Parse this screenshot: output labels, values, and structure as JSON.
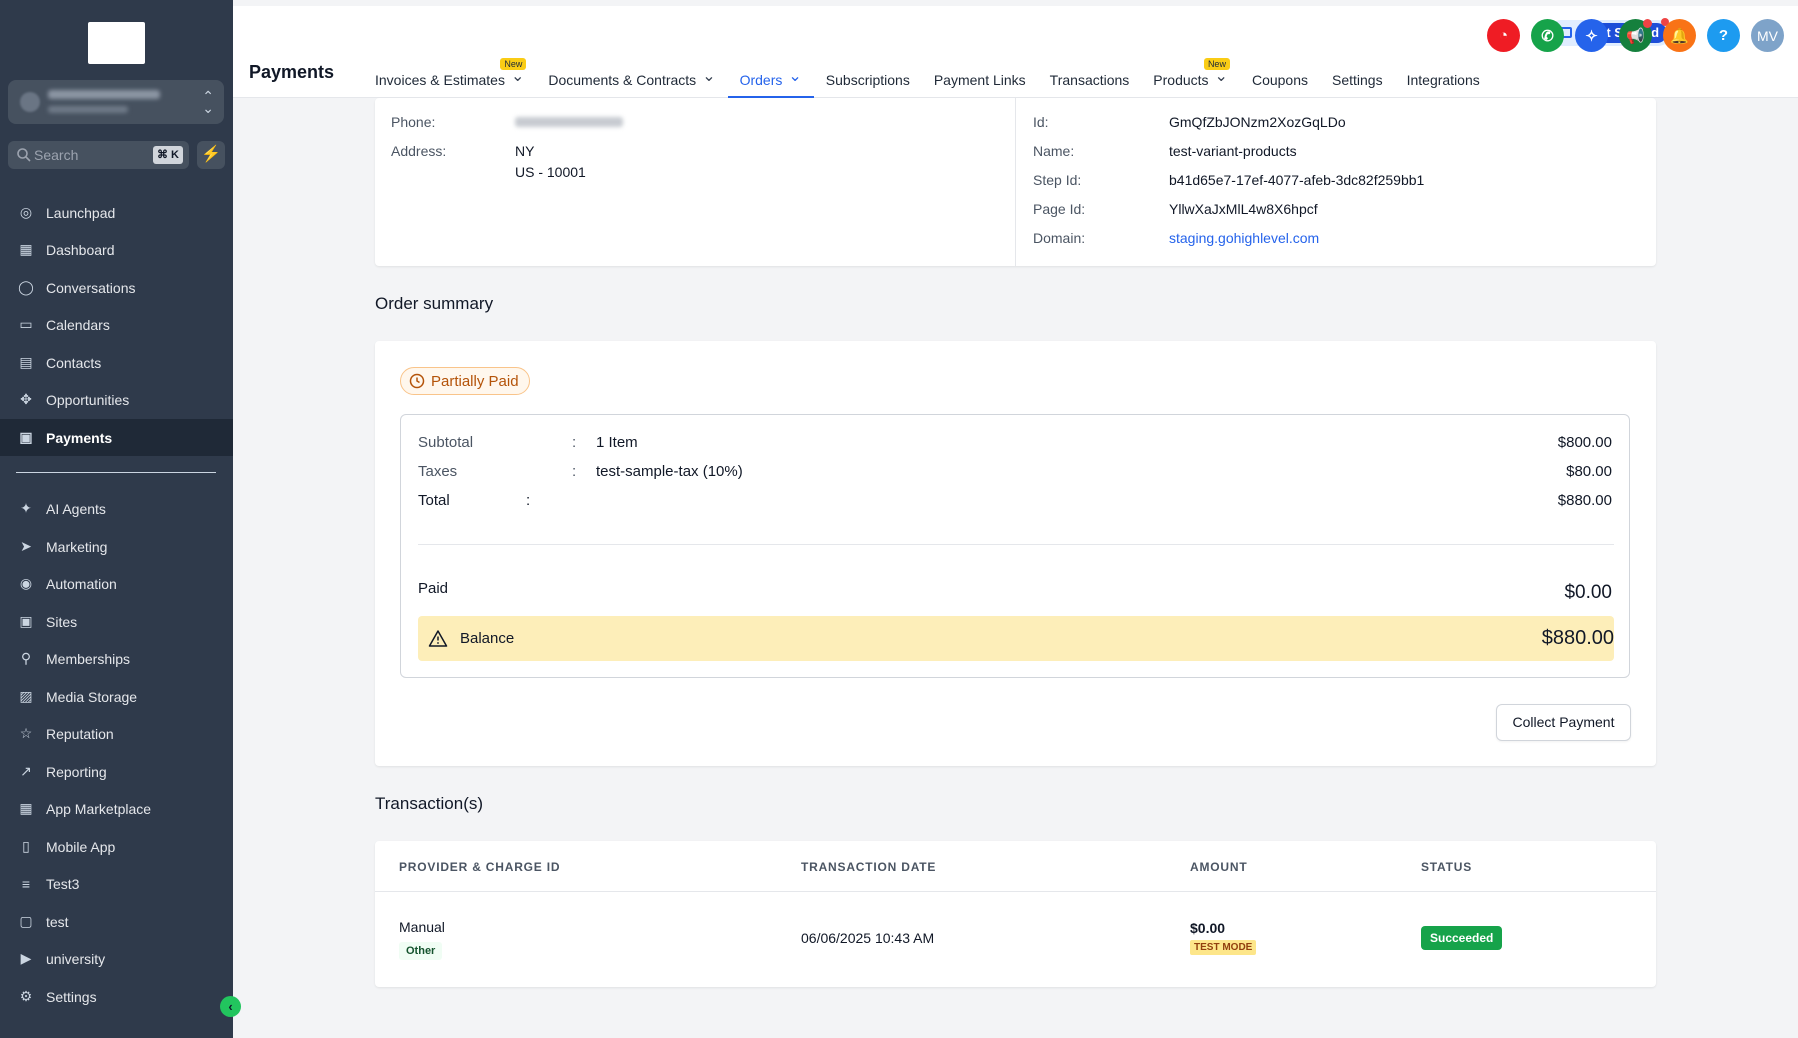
{
  "sidebar": {
    "search_label": "Search",
    "search_shortcut": "⌘ K",
    "items": [
      {
        "label": "Launchpad",
        "icon": "launchpad-icon",
        "glyph": "◎"
      },
      {
        "label": "Dashboard",
        "icon": "dashboard-icon",
        "glyph": "▦"
      },
      {
        "label": "Conversations",
        "icon": "chat-icon",
        "glyph": "◯"
      },
      {
        "label": "Calendars",
        "icon": "calendar-icon",
        "glyph": "▭"
      },
      {
        "label": "Contacts",
        "icon": "contacts-icon",
        "glyph": "▤"
      },
      {
        "label": "Opportunities",
        "icon": "opportunities-icon",
        "glyph": "✥"
      },
      {
        "label": "Payments",
        "icon": "payments-icon",
        "glyph": "▣"
      },
      {
        "label": "AI Agents",
        "icon": "ai-agents-icon",
        "glyph": "✦"
      },
      {
        "label": "Marketing",
        "icon": "marketing-icon",
        "glyph": "➤"
      },
      {
        "label": "Automation",
        "icon": "automation-icon",
        "glyph": "◉"
      },
      {
        "label": "Sites",
        "icon": "sites-icon",
        "glyph": "▣"
      },
      {
        "label": "Memberships",
        "icon": "memberships-icon",
        "glyph": "⚲"
      },
      {
        "label": "Media Storage",
        "icon": "media-icon",
        "glyph": "▨"
      },
      {
        "label": "Reputation",
        "icon": "star-icon",
        "glyph": "☆"
      },
      {
        "label": "Reporting",
        "icon": "reporting-icon",
        "glyph": "↗"
      },
      {
        "label": "App Marketplace",
        "icon": "marketplace-icon",
        "glyph": "▦"
      },
      {
        "label": "Mobile App",
        "icon": "mobile-icon",
        "glyph": "▯"
      },
      {
        "label": "Test3",
        "icon": "test3-icon",
        "glyph": "≡"
      },
      {
        "label": "test",
        "icon": "test-icon",
        "glyph": "▢"
      },
      {
        "label": "university",
        "icon": "university-icon",
        "glyph": "▶"
      },
      {
        "label": "Settings",
        "icon": "gear-icon",
        "glyph": "⚙"
      }
    ]
  },
  "header": {
    "title": "Payments",
    "get_started": "Get Started",
    "new_badge": "New",
    "avatar_initials": "MV",
    "help_glyph": "?",
    "tabs": [
      {
        "label": "Invoices & Estimates",
        "dropdown": true,
        "new": true
      },
      {
        "label": "Documents & Contracts",
        "dropdown": true,
        "new": false
      },
      {
        "label": "Orders",
        "dropdown": true,
        "new": false,
        "active": true
      },
      {
        "label": "Subscriptions",
        "dropdown": false,
        "new": false
      },
      {
        "label": "Payment Links",
        "dropdown": false,
        "new": false
      },
      {
        "label": "Transactions",
        "dropdown": false,
        "new": false
      },
      {
        "label": "Products",
        "dropdown": true,
        "new": true
      },
      {
        "label": "Coupons",
        "dropdown": false,
        "new": false
      },
      {
        "label": "Settings",
        "dropdown": false,
        "new": false
      },
      {
        "label": "Integrations",
        "dropdown": false,
        "new": false
      }
    ],
    "colors": {
      "accent": "#2563eb",
      "red": "#ef1c24",
      "green": "#16a34a",
      "blue": "#2563eb",
      "teal": "#15803d",
      "orange": "#f97316",
      "help": "#1d9bf0",
      "avatar": "#7ea3c9"
    }
  },
  "customer": {
    "phone_label": "Phone:",
    "address_label": "Address:",
    "address_line1": "NY",
    "address_line2": "US - 10001"
  },
  "source": {
    "id_label": "Id:",
    "id_value": "GmQfZbJONzm2XozGqLDo",
    "name_label": "Name:",
    "name_value": "test-variant-products",
    "step_label": "Step Id:",
    "step_value": "b41d65e7-17ef-4077-afeb-3dc82f259bb1",
    "page_label": "Page Id:",
    "page_value": "YllwXaJxMlL4w8X6hpcf",
    "domain_label": "Domain:",
    "domain_value": "staging.gohighlevel.com"
  },
  "order_summary": {
    "title": "Order summary",
    "status": "Partially Paid",
    "subtotal_label": "Subtotal",
    "subtotal_desc": "1 Item",
    "subtotal_value": "$800.00",
    "taxes_label": "Taxes",
    "taxes_desc": "test-sample-tax (10%)",
    "taxes_value": "$80.00",
    "total_label": "Total",
    "total_value": "$880.00",
    "colon": ":",
    "paid_label": "Paid",
    "paid_value": "$0.00",
    "balance_label": "Balance",
    "balance_value": "$880.00",
    "collect_button": "Collect Payment"
  },
  "transactions": {
    "title": "Transaction(s)",
    "columns": [
      "PROVIDER & CHARGE ID",
      "TRANSACTION DATE",
      "AMOUNT",
      "STATUS"
    ],
    "rows": [
      {
        "provider": "Manual",
        "provider_tag": "Other",
        "date": "06/06/2025 10:43 AM",
        "amount": "$0.00",
        "mode": "TEST MODE",
        "status": "Succeeded"
      }
    ]
  }
}
